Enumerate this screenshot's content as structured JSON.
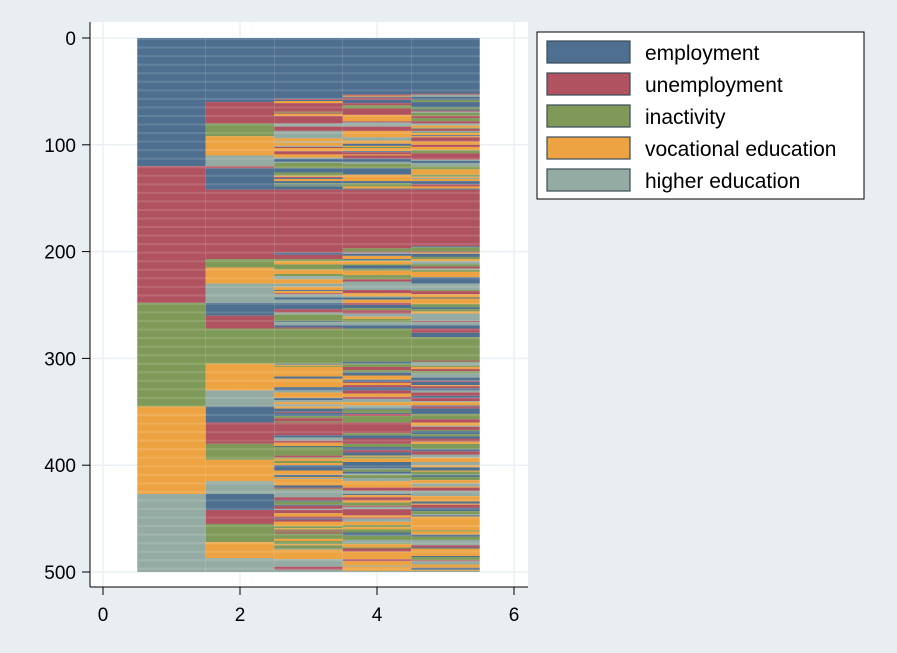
{
  "chart_data": {
    "type": "heatmap",
    "subtype": "sequence index plot",
    "title": "",
    "xlabel": "",
    "ylabel": "",
    "xlim": [
      0,
      6
    ],
    "ylim": [
      0,
      500
    ],
    "y_axis_reversed": true,
    "xticks": [
      0,
      2,
      4,
      6
    ],
    "yticks": [
      0,
      100,
      200,
      300,
      400,
      500
    ],
    "legend_position": "top-right",
    "grid": true,
    "categories": [
      {
        "name": "employment",
        "color": "#4e6f8f"
      },
      {
        "name": "unemployment",
        "color": "#b0525f"
      },
      {
        "name": "inactivity",
        "color": "#7f9a58"
      },
      {
        "name": "vocational education",
        "color": "#eda341"
      },
      {
        "name": "higher education",
        "color": "#94aba3"
      }
    ],
    "time_points": [
      1,
      2,
      3,
      4,
      5
    ],
    "first_state_blocks": [
      {
        "state": "employment",
        "from": 0,
        "to": 120
      },
      {
        "state": "unemployment",
        "from": 120,
        "to": 248
      },
      {
        "state": "inactivity",
        "from": 248,
        "to": 345
      },
      {
        "state": "vocational education",
        "from": 345,
        "to": 427
      },
      {
        "state": "higher education",
        "from": 427,
        "to": 500
      }
    ],
    "time2_blocks": [
      {
        "state": "employment",
        "from": 0,
        "to": 60
      },
      {
        "state": "unemployment",
        "from": 60,
        "to": 80
      },
      {
        "state": "inactivity",
        "from": 80,
        "to": 92
      },
      {
        "state": "vocational education",
        "from": 92,
        "to": 110
      },
      {
        "state": "higher education",
        "from": 110,
        "to": 120
      },
      {
        "state": "unemployment",
        "from": 120,
        "to": 122
      },
      {
        "state": "employment",
        "from": 122,
        "to": 142
      },
      {
        "state": "unemployment",
        "from": 142,
        "to": 207
      },
      {
        "state": "inactivity",
        "from": 207,
        "to": 215
      },
      {
        "state": "vocational education",
        "from": 215,
        "to": 230
      },
      {
        "state": "higher education",
        "from": 230,
        "to": 248
      },
      {
        "state": "employment",
        "from": 248,
        "to": 260
      },
      {
        "state": "unemployment",
        "from": 260,
        "to": 272
      },
      {
        "state": "inactivity",
        "from": 272,
        "to": 305
      },
      {
        "state": "vocational education",
        "from": 305,
        "to": 330
      },
      {
        "state": "higher education",
        "from": 330,
        "to": 345
      },
      {
        "state": "employment",
        "from": 345,
        "to": 360
      },
      {
        "state": "unemployment",
        "from": 360,
        "to": 380
      },
      {
        "state": "inactivity",
        "from": 380,
        "to": 395
      },
      {
        "state": "vocational education",
        "from": 395,
        "to": 415
      },
      {
        "state": "higher education",
        "from": 415,
        "to": 427
      },
      {
        "state": "employment",
        "from": 427,
        "to": 442
      },
      {
        "state": "unemployment",
        "from": 442,
        "to": 455
      },
      {
        "state": "inactivity",
        "from": 455,
        "to": 472
      },
      {
        "state": "vocational education",
        "from": 472,
        "to": 487
      },
      {
        "state": "higher education",
        "from": 487,
        "to": 500
      }
    ],
    "uniform_segments": [
      {
        "time": 3,
        "state": "employment",
        "from": 0,
        "to": 55
      },
      {
        "time": 4,
        "state": "employment",
        "from": 0,
        "to": 52
      },
      {
        "time": 5,
        "state": "employment",
        "from": 0,
        "to": 52
      },
      {
        "time": 3,
        "state": "unemployment",
        "from": 142,
        "to": 200
      },
      {
        "time": 4,
        "state": "unemployment",
        "from": 142,
        "to": 195
      },
      {
        "time": 5,
        "state": "unemployment",
        "from": 142,
        "to": 195
      },
      {
        "time": 3,
        "state": "inactivity",
        "from": 272,
        "to": 305
      },
      {
        "time": 4,
        "state": "inactivity",
        "from": 272,
        "to": 300
      },
      {
        "time": 5,
        "state": "inactivity",
        "from": 280,
        "to": 300
      }
    ]
  }
}
